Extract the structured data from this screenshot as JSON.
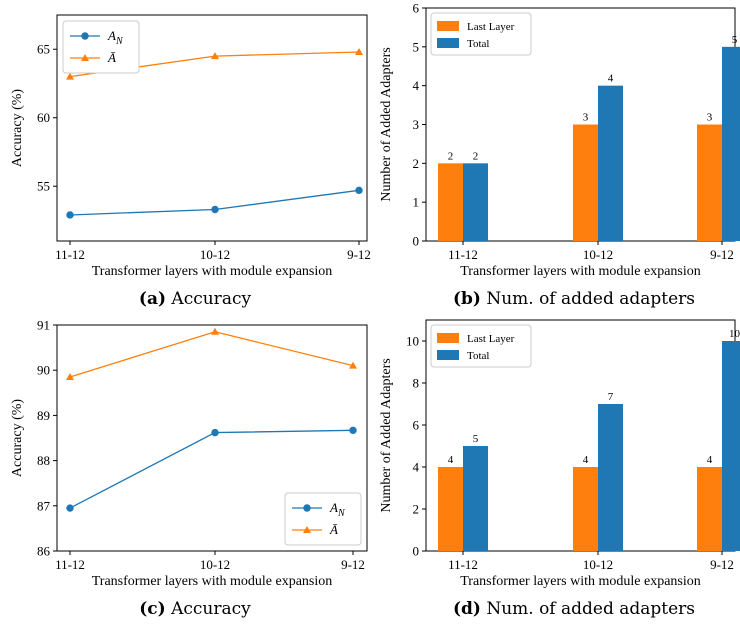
{
  "colors": {
    "blue": "#1f77b4",
    "orange": "#ff7f0e"
  },
  "chart_data": [
    {
      "type": "line",
      "x": [
        "11-12",
        "10-12",
        "9-12"
      ],
      "series": [
        {
          "name": "A_N",
          "name_sub": "N",
          "marker": "circle",
          "color": "#1f77b4",
          "values": [
            52.9,
            53.3,
            54.7
          ]
        },
        {
          "name": "Ā",
          "marker": "triangle",
          "color": "#ff7f0e",
          "values": [
            63.0,
            64.5,
            64.8
          ]
        }
      ],
      "xlabel": "Transformer layers with module expansion",
      "ylabel": "Accuracy (%)",
      "ylim": [
        51.0,
        67.5
      ],
      "yticks": [
        55,
        60,
        65
      ],
      "legend": "top-left",
      "caption_label": "(a)",
      "caption_text": "Accuracy"
    },
    {
      "type": "bar",
      "categories": [
        "11-12",
        "10-12",
        "9-12"
      ],
      "series": [
        {
          "name": "Last Layer",
          "color": "#ff7f0e",
          "values": [
            2,
            3,
            3
          ]
        },
        {
          "name": "Total",
          "color": "#1f77b4",
          "values": [
            2,
            4,
            5
          ]
        }
      ],
      "xlabel": "Transformer layers with module expansion",
      "ylabel": "Number of Added Adapters",
      "ylim": [
        0,
        6
      ],
      "yticks": [
        0,
        1,
        2,
        3,
        4,
        5,
        6
      ],
      "legend": "top-left",
      "caption_label": "(b)",
      "caption_text": "Num. of added adapters"
    },
    {
      "type": "line",
      "x": [
        "11-12",
        "10-12",
        "9-12"
      ],
      "series": [
        {
          "name": "A_N",
          "name_sub": "N",
          "marker": "circle",
          "color": "#1f77b4",
          "values": [
            86.95,
            88.62,
            88.67
          ]
        },
        {
          "name": "Ā",
          "marker": "triangle",
          "color": "#ff7f0e",
          "values": [
            89.85,
            90.85,
            90.1
          ]
        }
      ],
      "xlabel": "Transformer layers with module expansion",
      "ylabel": "Accuracy (%)",
      "ylim": [
        86.0,
        91.0
      ],
      "yticks": [
        86,
        87,
        88,
        89,
        90,
        91
      ],
      "legend": "bottom-right",
      "caption_label": "(c)",
      "caption_text": "Accuracy"
    },
    {
      "type": "bar",
      "categories": [
        "11-12",
        "10-12",
        "9-12"
      ],
      "series": [
        {
          "name": "Last Layer",
          "color": "#ff7f0e",
          "values": [
            4,
            4,
            4
          ]
        },
        {
          "name": "Total",
          "color": "#1f77b4",
          "values": [
            5,
            7,
            10
          ]
        }
      ],
      "xlabel": "Transformer layers with module expansion",
      "ylabel": "Number of Added Adapters",
      "ylim": [
        0,
        11
      ],
      "yticks": [
        0,
        2,
        4,
        6,
        8,
        10
      ],
      "legend": "top-left",
      "caption_label": "(d)",
      "caption_text": "Num. of added adapters"
    }
  ]
}
